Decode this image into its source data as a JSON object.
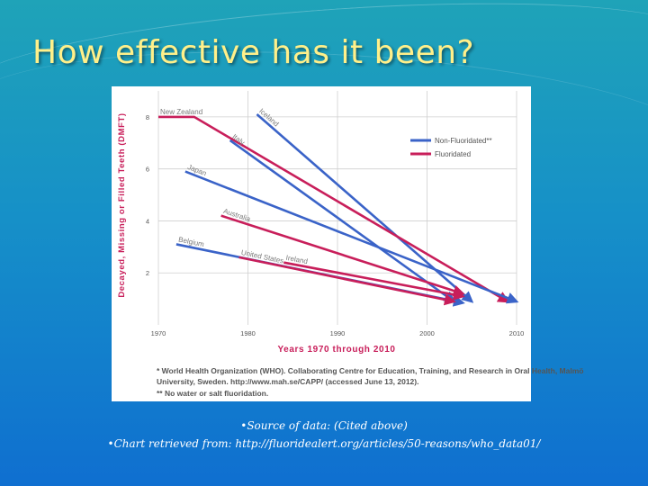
{
  "slide": {
    "title": "How effective has it been?",
    "source_line": "•Source of data: (Cited above)",
    "retrieved_line": "•Chart retrieved from: http://fluoridealert.org/articles/50-reasons/who_data01/"
  },
  "chart_data": {
    "type": "line",
    "title": "",
    "xlabel": "Years 1970 through 2010",
    "ylabel": "Decayed, Missing or Filled Teeth (DMFT)",
    "xlim": [
      1970,
      2010
    ],
    "ylim": [
      0,
      9
    ],
    "xticks": [
      1970,
      1980,
      1990,
      2000,
      2010
    ],
    "yticks": [
      2,
      4,
      6,
      8
    ],
    "legend": [
      {
        "label": "Non-Fluoridated**",
        "color": "#3a63c8"
      },
      {
        "label": "Fluoridated",
        "color": "#c81e5a"
      }
    ],
    "series": [
      {
        "name": "Iceland",
        "group": "non",
        "points": [
          [
            1981,
            8.1
          ],
          [
            2005,
            0.9
          ]
        ]
      },
      {
        "name": "New Zealand",
        "group": "fl",
        "points": [
          [
            1970,
            8.0
          ],
          [
            1974,
            8.0
          ],
          [
            2009,
            0.9
          ]
        ]
      },
      {
        "name": "Italy",
        "group": "non",
        "points": [
          [
            1978,
            7.1
          ],
          [
            2003,
            0.9
          ]
        ]
      },
      {
        "name": "Japan",
        "group": "non",
        "points": [
          [
            1973,
            5.9
          ],
          [
            2010,
            0.9
          ]
        ]
      },
      {
        "name": "Australia",
        "group": "fl",
        "points": [
          [
            1977,
            4.2
          ],
          [
            2004,
            1.2
          ]
        ]
      },
      {
        "name": "Belgium",
        "group": "non",
        "points": [
          [
            1972,
            3.1
          ],
          [
            2004,
            0.85
          ]
        ]
      },
      {
        "name": "United States",
        "group": "fl",
        "points": [
          [
            1979,
            2.6
          ],
          [
            2003,
            0.9
          ]
        ]
      },
      {
        "name": "Ireland",
        "group": "fl",
        "points": [
          [
            1984,
            2.4
          ],
          [
            2004,
            1.1
          ]
        ]
      }
    ],
    "footnote_1": "* World Health Organization (WHO). Collaborating Centre for Education, Training, and Research in Oral Health, Malmö University, Sweden. http://www.mah.se/CAPP/ (accessed June 13, 2012).",
    "footnote_2": "** No water or salt fluoridation."
  }
}
